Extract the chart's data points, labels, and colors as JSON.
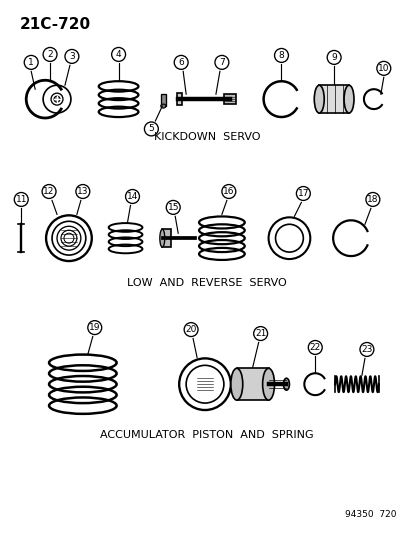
{
  "title_code": "21C-720",
  "footer_code": "94350  720",
  "background_color": "#ffffff",
  "line_color": "#000000",
  "section1_label": "KICKDOWN  SERVO",
  "section2_label": "LOW  AND  REVERSE  SERVO",
  "section3_label": "ACCUMULATOR  PISTON  AND  SPRING",
  "figsize": [
    4.14,
    5.33
  ],
  "dpi": 100
}
